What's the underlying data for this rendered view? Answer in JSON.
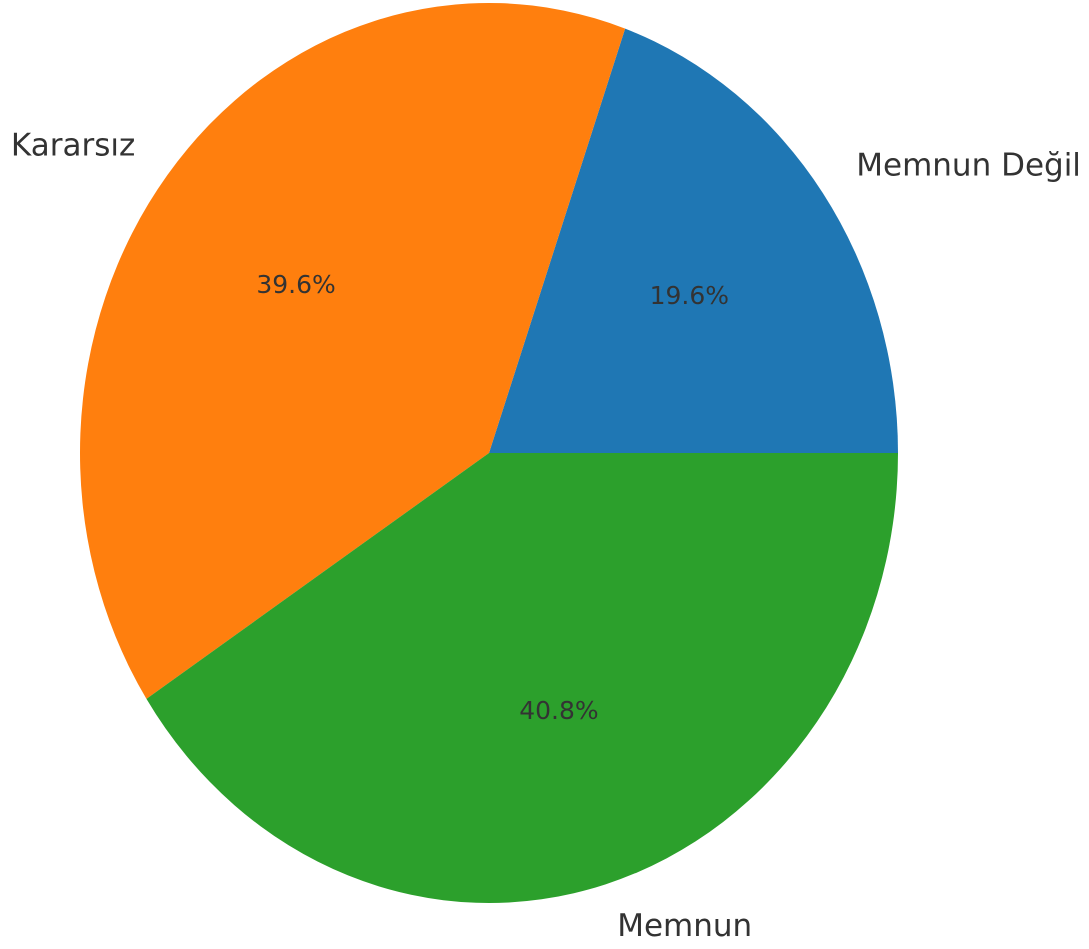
{
  "chart_data": {
    "type": "pie",
    "categories": [
      "Memnun Değil",
      "Kararsız",
      "Memnun"
    ],
    "values": [
      19.6,
      39.6,
      40.8
    ],
    "value_labels": [
      "19.6%",
      "39.6%",
      "40.8%"
    ],
    "colors": [
      "#1f77b4",
      "#ff7f0e",
      "#2ca02c"
    ]
  }
}
